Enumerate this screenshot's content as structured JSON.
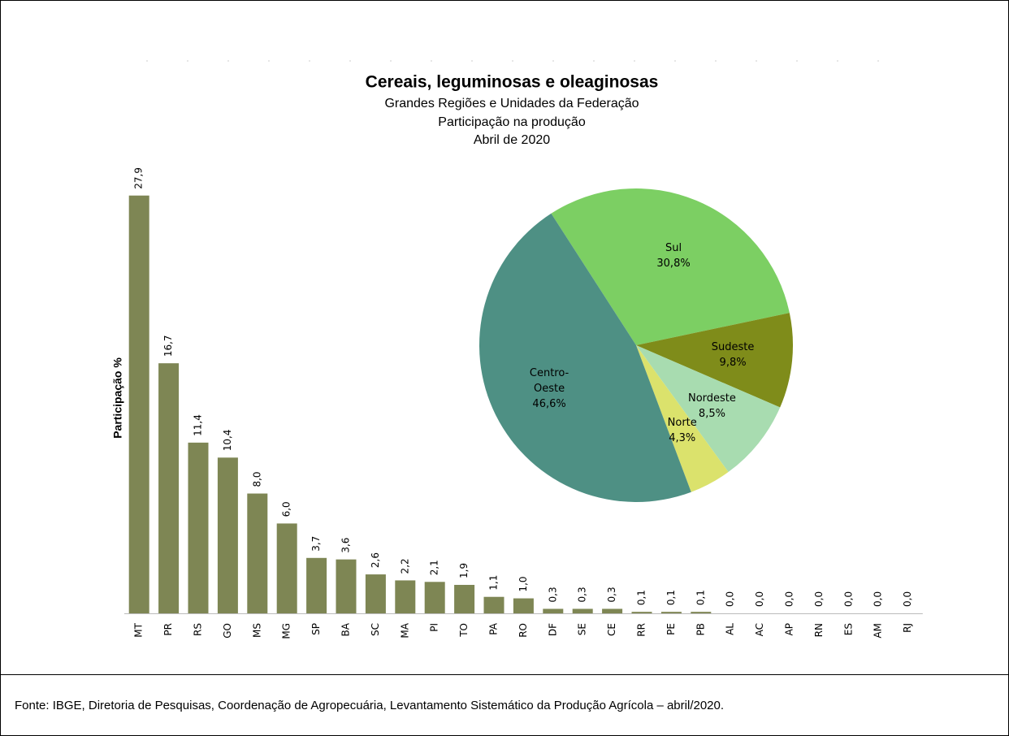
{
  "title": "Cereais, leguminosas e oleaginosas",
  "subtitles": [
    "Grandes Regiões e Unidades da Federação",
    "Participação na produção",
    "Abril de 2020"
  ],
  "source": "Fonte: IBGE, Diretoria de Pesquisas, Coordenação de Agropecuária, Levantamento Sistemático da Produção Agrícola – abril/2020.",
  "chart_data": [
    {
      "type": "bar",
      "y_label": "Participação %",
      "color": "#7e8654",
      "ylim": [
        0,
        30
      ],
      "categories": [
        "MT",
        "PR",
        "RS",
        "GO",
        "MS",
        "MG",
        "SP",
        "BA",
        "SC",
        "MA",
        "PI",
        "TO",
        "PA",
        "RO",
        "DF",
        "SE",
        "CE",
        "RR",
        "PE",
        "PB",
        "AL",
        "AC",
        "AP",
        "RN",
        "ES",
        "AM",
        "RJ"
      ],
      "values": [
        27.9,
        16.7,
        11.4,
        10.4,
        8.0,
        6.0,
        3.7,
        3.6,
        2.6,
        2.2,
        2.1,
        1.9,
        1.1,
        1.0,
        0.3,
        0.3,
        0.3,
        0.1,
        0.1,
        0.1,
        0.0,
        0.0,
        0.0,
        0.0,
        0.0,
        0.0,
        0.0
      ],
      "value_labels": [
        "27,9",
        "16,7",
        "11,4",
        "10,4",
        "8,0",
        "6,0",
        "3,7",
        "3,6",
        "2,6",
        "2,2",
        "2,1",
        "1,9",
        "1,1",
        "1,0",
        "0,3",
        "0,3",
        "0,3",
        "0,1",
        "0,1",
        "0,1",
        "0,0",
        "0,0",
        "0,0",
        "0,0",
        "0,0",
        "0,0",
        "0,0"
      ]
    },
    {
      "type": "pie",
      "categories": [
        "Sul",
        "Sudeste",
        "Nordeste",
        "Norte",
        "Centro-Oeste"
      ],
      "values": [
        30.8,
        9.8,
        8.5,
        4.3,
        46.6
      ],
      "value_labels": [
        "30,8%",
        "9,8%",
        "8,5%",
        "4,3%",
        "46,6%"
      ],
      "colors": [
        "#7ccf63",
        "#7f8c1a",
        "#a8dcb0",
        "#dbe26c",
        "#4e9084"
      ]
    }
  ]
}
